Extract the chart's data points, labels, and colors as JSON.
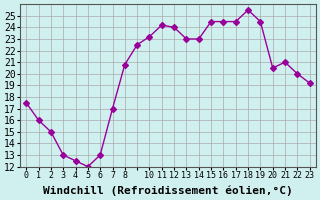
{
  "x": [
    0,
    1,
    2,
    3,
    4,
    5,
    6,
    7,
    8,
    9,
    10,
    11,
    12,
    13,
    14,
    15,
    16,
    17,
    18,
    19,
    20,
    21,
    22,
    23
  ],
  "y": [
    17.5,
    16.0,
    15.0,
    13.0,
    12.5,
    12.0,
    13.0,
    17.0,
    20.8,
    22.5,
    23.2,
    24.2,
    24.0,
    23.0,
    23.0,
    24.5,
    24.5,
    24.5,
    25.5,
    24.5,
    20.5,
    21.0,
    20.0,
    19.2
  ],
  "line_color": "#990099",
  "marker": "D",
  "marker_size": 3,
  "bg_color": "#d0f0f0",
  "grid_color": "#aaaaaa",
  "xlabel": "Windchill (Refroidissement éolien,°C)",
  "xlabel_fontsize": 8,
  "ylabel_fontsize": 7,
  "tick_fontsize": 7,
  "ylim": [
    12,
    26
  ],
  "yticks": [
    12,
    13,
    14,
    15,
    16,
    17,
    18,
    19,
    20,
    21,
    22,
    23,
    24,
    25
  ]
}
